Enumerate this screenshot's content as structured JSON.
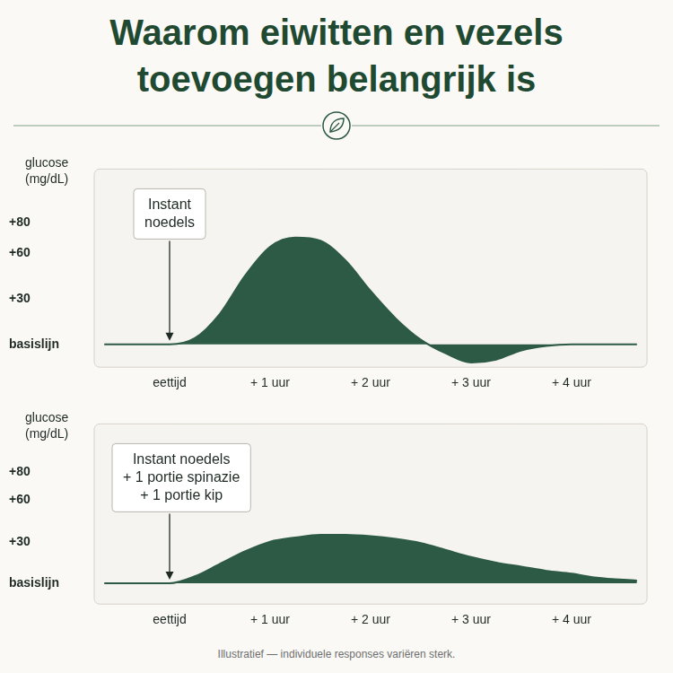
{
  "title": [
    "Waarom eiwitten en vezels",
    "toevoegen belangrijk is"
  ],
  "footer": "Illustratief — individuele responses variëren sterk.",
  "chart_data": [
    {
      "type": "area",
      "y_label": [
        "glucose",
        "(mg/dL)"
      ],
      "annotation": {
        "lines": [
          "Instant",
          "noedels"
        ],
        "x": 0,
        "y": 0
      },
      "x": [
        -0.65,
        -0.25,
        0,
        0.25,
        0.5,
        0.75,
        1,
        1.25,
        1.5,
        1.75,
        2,
        2.25,
        2.5,
        2.75,
        3,
        3.25,
        3.5,
        3.75,
        4,
        4.25,
        4.65
      ],
      "values": [
        0,
        0,
        0,
        4,
        20,
        45,
        64,
        70,
        68,
        55,
        35,
        17,
        3,
        -6,
        -12,
        -10,
        -4,
        -1,
        0,
        0,
        0
      ],
      "color": "#2d5a44",
      "xlim": [
        -0.75,
        4.75
      ],
      "xticks": [
        {
          "value": 0,
          "label": "eettijd"
        },
        {
          "value": 1,
          "label": "+ 1 uur"
        },
        {
          "value": 2,
          "label": "+ 2 uur"
        },
        {
          "value": 3,
          "label": "+ 3 uur"
        },
        {
          "value": 4,
          "label": "+ 4 uur"
        }
      ],
      "ylim": [
        -15,
        115
      ],
      "yticks": [
        {
          "value": 0,
          "label": "basislijn"
        },
        {
          "value": 30,
          "label": "+30"
        },
        {
          "value": 60,
          "label": "+60"
        },
        {
          "value": 80,
          "label": "+80"
        }
      ],
      "grid": false
    },
    {
      "type": "area",
      "y_label": [
        "glucose",
        "(mg/dL)"
      ],
      "annotation": {
        "lines": [
          "Instant noedels",
          "+ 1 portie spinazie",
          "+ 1 portie kip"
        ],
        "x": 0,
        "y": 0
      },
      "x": [
        -0.65,
        -0.25,
        0,
        0.25,
        0.5,
        0.75,
        1,
        1.25,
        1.5,
        1.75,
        2,
        2.25,
        2.5,
        2.75,
        3,
        3.25,
        3.5,
        3.75,
        4,
        4.25,
        4.65
      ],
      "values": [
        0,
        0,
        0,
        5,
        14,
        23,
        30,
        33,
        35,
        35,
        34,
        32,
        29,
        24,
        19,
        15,
        12,
        9,
        7,
        4,
        2
      ],
      "color": "#2d5a44",
      "xlim": [
        -0.75,
        4.75
      ],
      "xticks": [
        {
          "value": 0,
          "label": "eettijd"
        },
        {
          "value": 1,
          "label": "+ 1 uur"
        },
        {
          "value": 2,
          "label": "+ 2 uur"
        },
        {
          "value": 3,
          "label": "+ 3 uur"
        },
        {
          "value": 4,
          "label": "+ 4 uur"
        }
      ],
      "ylim": [
        -15,
        115
      ],
      "yticks": [
        {
          "value": 0,
          "label": "basislijn"
        },
        {
          "value": 30,
          "label": "+30"
        },
        {
          "value": 60,
          "label": "+60"
        },
        {
          "value": 80,
          "label": "+80"
        }
      ],
      "grid": false
    }
  ]
}
